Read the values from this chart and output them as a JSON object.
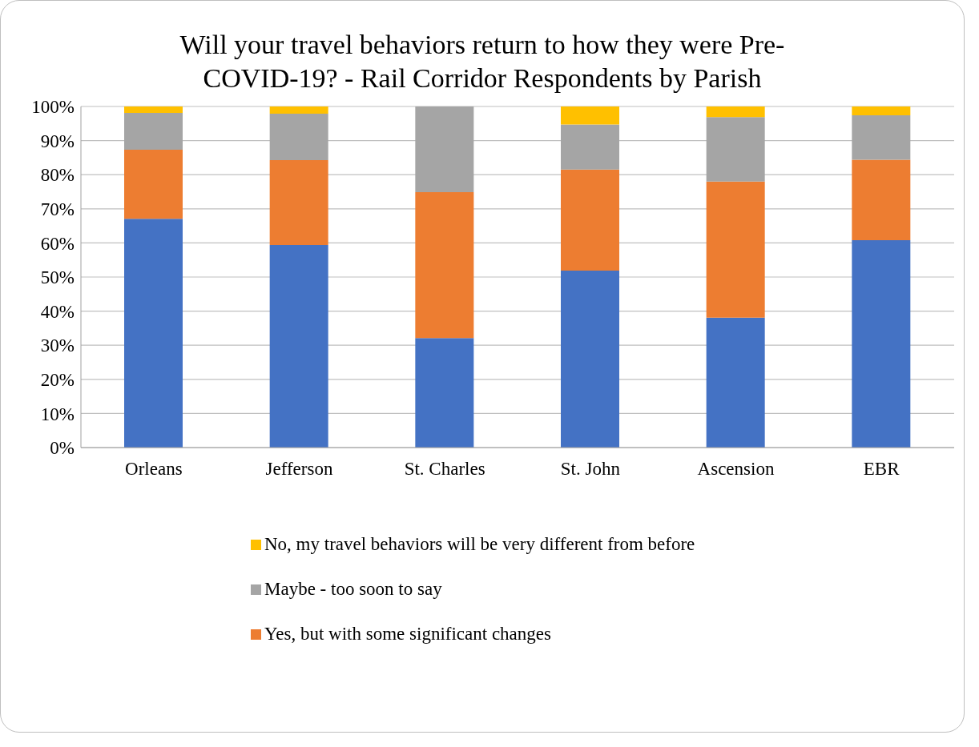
{
  "chart_data": {
    "type": "bar",
    "title": "Will your travel behaviors return to how they were Pre-COVID-19? - Rail Corridor Respondents by Parish",
    "categories": [
      "Orleans",
      "Jefferson",
      "St. Charles",
      "St. John",
      "Ascension",
      "EBR"
    ],
    "stacked": true,
    "series": [
      {
        "color": "#4472c4",
        "values": [
          67.1,
          59.4,
          32.1,
          51.9,
          38.1,
          60.8
        ]
      },
      {
        "name": "Yes, but with some significant changes",
        "color": "#ed7d31",
        "values": [
          20.2,
          24.9,
          42.8,
          29.6,
          39.9,
          23.6
        ]
      },
      {
        "name": "Maybe - too soon to say",
        "color": "#a5a5a5",
        "values": [
          10.8,
          13.6,
          25.1,
          13.2,
          18.9,
          13.0
        ]
      },
      {
        "name": "No, my travel behaviors will be very different from before",
        "color": "#ffc000",
        "values": [
          1.9,
          2.1,
          0,
          5.3,
          3.1,
          2.6
        ]
      }
    ],
    "ylim": [
      0,
      100
    ],
    "yticks": [
      {
        "value": 0,
        "label": "0%"
      },
      {
        "value": 10,
        "label": "10%"
      },
      {
        "value": 20,
        "label": "20%"
      },
      {
        "value": 30,
        "label": "30%"
      },
      {
        "value": 40,
        "label": "40%"
      },
      {
        "value": 50,
        "label": "50%"
      },
      {
        "value": 60,
        "label": "60%"
      },
      {
        "value": 70,
        "label": "70%"
      },
      {
        "value": 80,
        "label": "80%"
      },
      {
        "value": 90,
        "label": "90%"
      },
      {
        "value": 100,
        "label": "100%"
      }
    ],
    "grid": "y",
    "legend": "bottom"
  }
}
